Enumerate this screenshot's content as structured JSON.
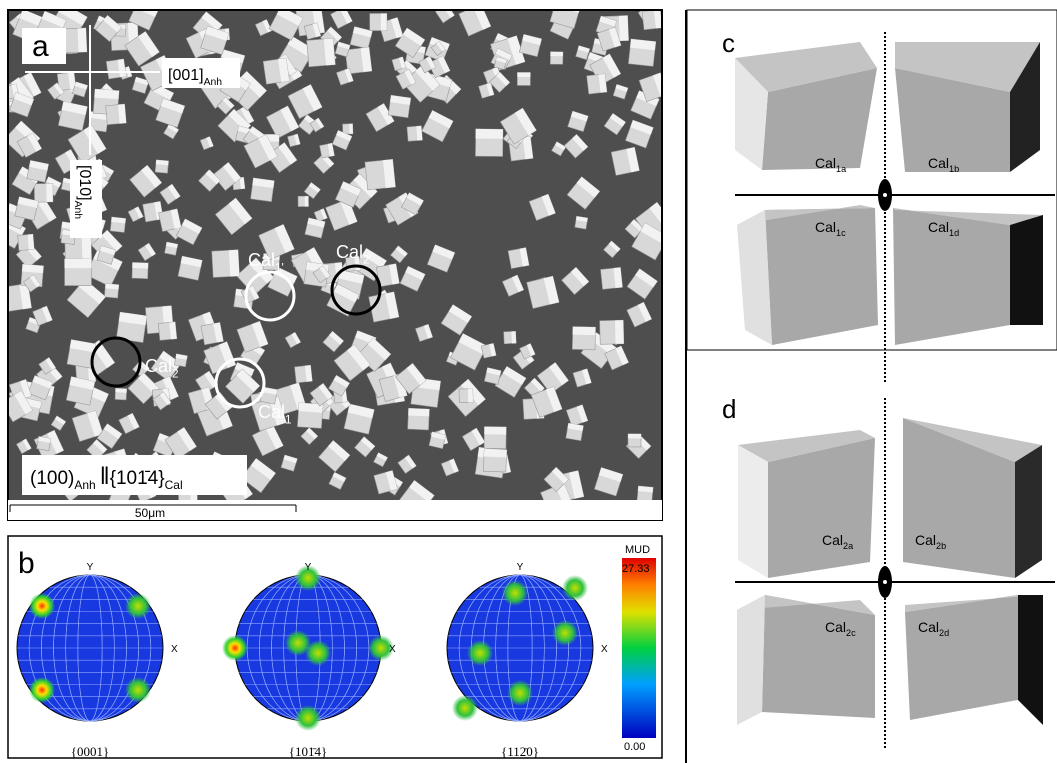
{
  "panel_a": {
    "label": "a",
    "dir_h": {
      "base": "[001]",
      "sub": "Anh"
    },
    "dir_v": {
      "base": "[010]",
      "sub": "Anh"
    },
    "circles": [
      {
        "base": "Cal",
        "sub": "1'"
      },
      {
        "base": "Cal",
        "sub": "2'"
      },
      {
        "base": "Cal",
        "sub": "2"
      },
      {
        "base": "Cal",
        "sub": "1"
      }
    ],
    "relation": {
      "left": "(100)",
      "left_sub": "Anh",
      "sep": "‖",
      "right": "{101̄4}",
      "right_sub": "Cal"
    },
    "scale": "50μm"
  },
  "panel_b": {
    "label": "b",
    "axis_y": "Y",
    "axis_x": "X",
    "nets": [
      "{0001}",
      "{101̄4}",
      "{112̄0}"
    ],
    "colorbar": {
      "title": "MUD",
      "max": "27.33",
      "min": "0.00"
    }
  },
  "panel_c": {
    "label": "c",
    "crystals": [
      {
        "base": "Cal",
        "sub": "1a"
      },
      {
        "base": "Cal",
        "sub": "1b"
      },
      {
        "base": "Cal",
        "sub": "1c"
      },
      {
        "base": "Cal",
        "sub": "1d"
      }
    ]
  },
  "panel_d": {
    "label": "d",
    "crystals": [
      {
        "base": "Cal",
        "sub": "2a"
      },
      {
        "base": "Cal",
        "sub": "2b"
      },
      {
        "base": "Cal",
        "sub": "2c"
      },
      {
        "base": "Cal",
        "sub": "2d"
      }
    ]
  }
}
